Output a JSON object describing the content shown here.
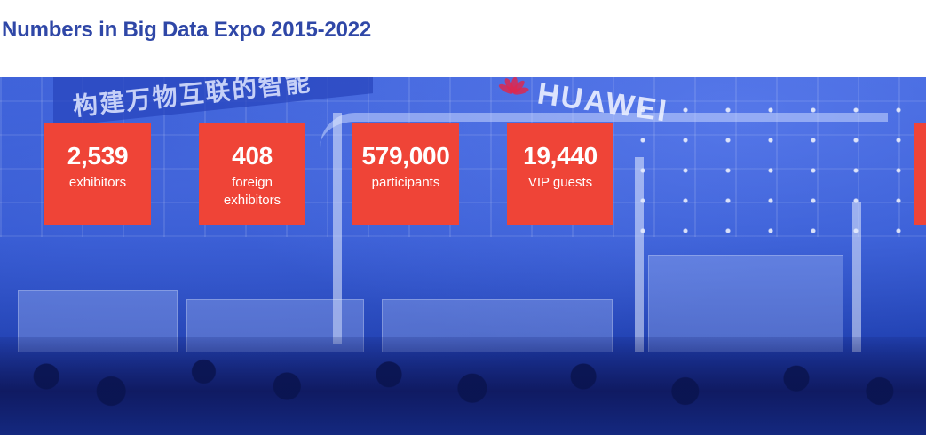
{
  "page": {
    "title": "Numbers in Big Data Expo 2015-2022",
    "title_color": "#2f47a7"
  },
  "hero": {
    "overlay_color": "#2f55cf",
    "banner_text": "构建万物互联的智能",
    "brand_word": "HUAWEI"
  },
  "stats": [
    {
      "value": "2,539",
      "label": "exhibitors"
    },
    {
      "value": "408",
      "label": "foreign exhibitors"
    },
    {
      "value": "579,000",
      "label": "participants"
    },
    {
      "value": "19,440",
      "label": "VIP guests"
    }
  ],
  "card_color": "#ef4437"
}
